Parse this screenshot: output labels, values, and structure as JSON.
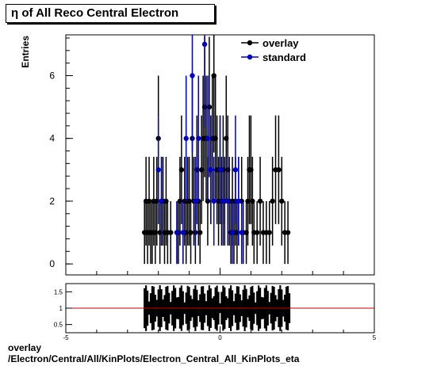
{
  "title": "η of All Reco Central Electron",
  "footer": {
    "line1": "overlay",
    "line2": "/Electron/Central/All/KinPlots/Electron_Central_All_KinPlots_eta"
  },
  "colors": {
    "overlay": "#000000",
    "standard": "#0000cc",
    "ratio_line": "#cc0000"
  },
  "chart_data": [
    {
      "type": "scatter",
      "ylabel": "Entries",
      "xlim": [
        -5,
        5
      ],
      "ylim": [
        -0.35,
        7.3
      ],
      "y_ticks": [
        0,
        2,
        4,
        6
      ],
      "legend": {
        "placement": "top-right",
        "entries": [
          "overlay",
          "standard"
        ]
      },
      "series": [
        {
          "name": "overlay",
          "points": [
            [
              -2.45,
              1
            ],
            [
              -2.4,
              2
            ],
            [
              -2.35,
              1
            ],
            [
              -2.3,
              2
            ],
            [
              -2.25,
              1
            ],
            [
              -2.2,
              1
            ],
            [
              -2.15,
              2
            ],
            [
              -2.1,
              1
            ],
            [
              -2.05,
              2
            ],
            [
              -2.0,
              4
            ],
            [
              -1.95,
              1
            ],
            [
              -1.9,
              2
            ],
            [
              -1.85,
              2
            ],
            [
              -1.8,
              1
            ],
            [
              -1.75,
              2
            ],
            [
              -1.7,
              1
            ],
            [
              -1.6,
              1
            ],
            [
              -1.4,
              1
            ],
            [
              -1.35,
              1
            ],
            [
              -1.3,
              2
            ],
            [
              -1.25,
              3
            ],
            [
              -1.2,
              1
            ],
            [
              -1.15,
              2
            ],
            [
              -1.1,
              1
            ],
            [
              -1.05,
              2
            ],
            [
              -1.0,
              2
            ],
            [
              -0.95,
              1
            ],
            [
              -0.9,
              4
            ],
            [
              -0.85,
              2
            ],
            [
              -0.8,
              1
            ],
            [
              -0.75,
              3
            ],
            [
              -0.7,
              2
            ],
            [
              -0.65,
              1
            ],
            [
              -0.6,
              3
            ],
            [
              -0.55,
              4
            ],
            [
              -0.5,
              5
            ],
            [
              -0.45,
              4
            ],
            [
              -0.4,
              2
            ],
            [
              -0.35,
              5
            ],
            [
              -0.3,
              3
            ],
            [
              -0.25,
              4
            ],
            [
              -0.2,
              6
            ],
            [
              -0.15,
              4
            ],
            [
              -0.1,
              3
            ],
            [
              -0.05,
              2
            ],
            [
              0.0,
              3
            ],
            [
              0.05,
              2
            ],
            [
              0.1,
              3
            ],
            [
              0.15,
              2
            ],
            [
              0.2,
              4
            ],
            [
              0.25,
              3
            ],
            [
              0.3,
              2
            ],
            [
              0.35,
              1
            ],
            [
              0.4,
              2
            ],
            [
              0.45,
              1
            ],
            [
              0.5,
              2
            ],
            [
              0.55,
              1
            ],
            [
              0.6,
              2
            ],
            [
              0.7,
              2
            ],
            [
              0.75,
              1
            ],
            [
              0.85,
              1
            ],
            [
              0.9,
              2
            ],
            [
              0.95,
              3
            ],
            [
              1.0,
              3
            ],
            [
              1.05,
              2
            ],
            [
              1.1,
              1
            ],
            [
              1.2,
              1
            ],
            [
              1.3,
              2
            ],
            [
              1.4,
              1
            ],
            [
              1.5,
              1
            ],
            [
              1.6,
              1
            ],
            [
              1.7,
              2
            ],
            [
              1.8,
              3
            ],
            [
              1.9,
              3
            ],
            [
              2.0,
              2
            ],
            [
              2.1,
              1
            ],
            [
              2.2,
              1
            ]
          ]
        },
        {
          "name": "standard",
          "points": [
            [
              -2.0,
              3
            ],
            [
              -1.9,
              2
            ],
            [
              -1.4,
              1
            ],
            [
              -1.1,
              4
            ],
            [
              -0.9,
              6
            ],
            [
              -0.7,
              4
            ],
            [
              -0.5,
              7
            ],
            [
              -0.4,
              4
            ],
            [
              -0.3,
              3
            ],
            [
              -0.2,
              2
            ],
            [
              0.0,
              3
            ],
            [
              0.1,
              2
            ],
            [
              0.25,
              2
            ],
            [
              0.4,
              1
            ],
            [
              0.5,
              3
            ],
            [
              0.6,
              2
            ],
            [
              0.7,
              1
            ],
            [
              -1.2,
              1
            ],
            [
              -0.8,
              2
            ]
          ]
        }
      ]
    },
    {
      "type": "line",
      "xlim": [
        -5,
        5
      ],
      "ylim": [
        0.25,
        1.75
      ],
      "y_ticks": [
        0.5,
        1,
        1.5
      ],
      "x_ticks": [
        -5,
        0,
        5
      ],
      "reference_line": 1,
      "ratio_band_x": [
        -2.45,
        2.25
      ]
    }
  ]
}
